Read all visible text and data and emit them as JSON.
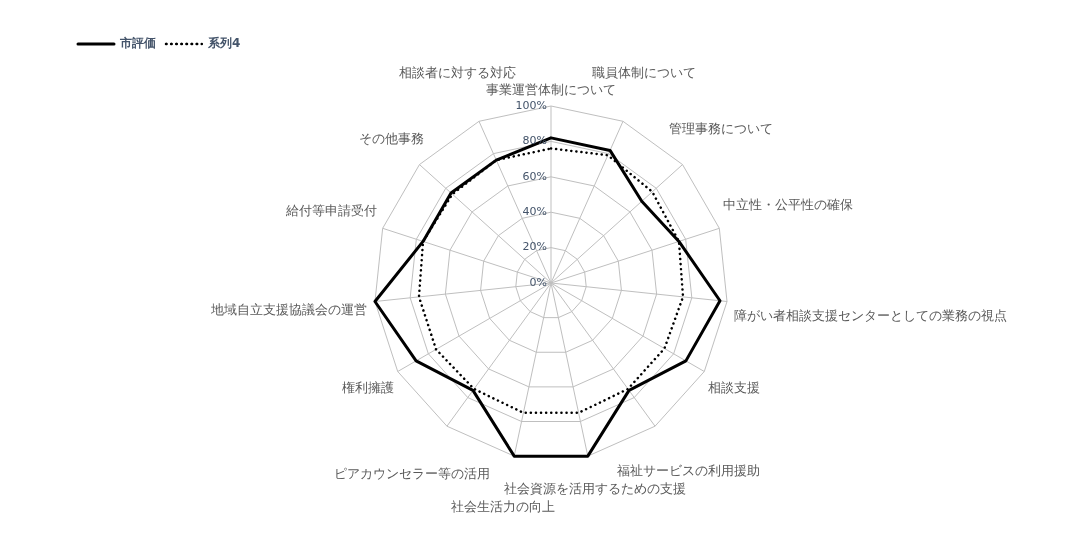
{
  "chart_data": {
    "type": "radar",
    "categories": [
      "事業運営体制について",
      "職員体制について",
      "管理事務について",
      "中立性・公平性の確保",
      "障がい者相談支援センターとしての業務の視点",
      "相談支援",
      "福祉サービスの利用援助",
      "社会資源を活用するための支援",
      "社会生活力の向上",
      "ピアカウンセラー等の活用",
      "権利擁護",
      "地域自立支援協議会の運営",
      "給付等申請受付",
      "その他事務",
      "相談者に対する対応"
    ],
    "series": [
      {
        "name": "市評価",
        "color": "#000000",
        "line_style": "solid",
        "values": [
          82,
          82,
          69,
          76,
          96,
          88,
          75,
          100,
          100,
          75,
          88,
          100,
          76,
          76,
          76
        ]
      },
      {
        "name": "系列4",
        "color": "#000000",
        "line_style": "dotted",
        "values": [
          76,
          79,
          77,
          76,
          75,
          74,
          74,
          75,
          75,
          74,
          75,
          75,
          76,
          75,
          76
        ]
      }
    ],
    "ylim": [
      0,
      100
    ],
    "yticks": [
      {
        "value": 0,
        "label": "0%"
      },
      {
        "value": 20,
        "label": "20%"
      },
      {
        "value": 40,
        "label": "40%"
      },
      {
        "value": 60,
        "label": "60%"
      },
      {
        "value": 80,
        "label": "80%"
      },
      {
        "value": 100,
        "label": "100%"
      }
    ],
    "grid": true,
    "legend": "top left",
    "marker": "none"
  }
}
